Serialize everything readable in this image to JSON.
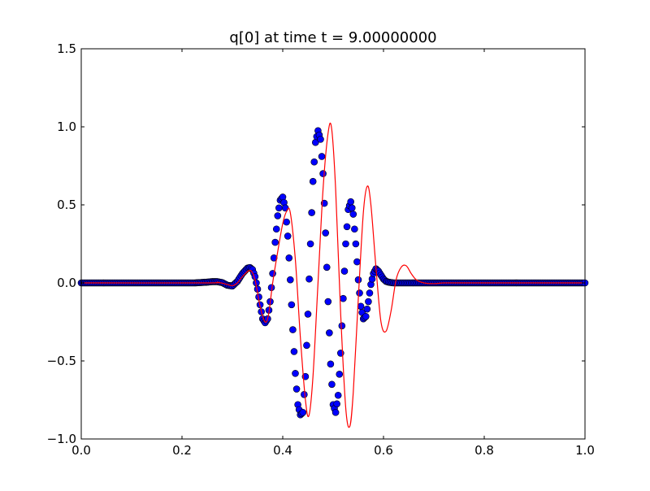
{
  "title": "q[0] at time t =     9.00000000",
  "colors": {
    "dots_fill": "#0000ff",
    "dots_edge": "#000000",
    "line": "#ff0000",
    "axes": "#000000",
    "background": "#ffffff"
  },
  "chart_data": {
    "type": "line",
    "title": "q[0] at time t =     9.00000000",
    "xlabel": "",
    "ylabel": "",
    "xlim": [
      0.0,
      1.0
    ],
    "ylim": [
      -1.0,
      1.5
    ],
    "grid": false,
    "legend": "none",
    "x_ticks": [
      "0.0",
      "0.2",
      "0.4",
      "0.6",
      "0.8",
      "1.0"
    ],
    "y_ticks": [
      "−1.0",
      "−0.5",
      "0.0",
      "0.5",
      "1.0",
      "1.5"
    ],
    "series": [
      {
        "kind": "scatter",
        "x": [
          0.0,
          0.025,
          0.05,
          0.075,
          0.1,
          0.125,
          0.15,
          0.175,
          0.2,
          0.225,
          0.25,
          0.26,
          0.27,
          0.28,
          0.29,
          0.3,
          0.31,
          0.32,
          0.33,
          0.335,
          0.34,
          0.345,
          0.35,
          0.355,
          0.36,
          0.365,
          0.37,
          0.375,
          0.38,
          0.385,
          0.39,
          0.395,
          0.4,
          0.405,
          0.41,
          0.415,
          0.42,
          0.425,
          0.43,
          0.435,
          0.44,
          0.445,
          0.45,
          0.455,
          0.46,
          0.465,
          0.47,
          0.475,
          0.48,
          0.485,
          0.49,
          0.495,
          0.5,
          0.505,
          0.51,
          0.515,
          0.52,
          0.525,
          0.53,
          0.535,
          0.54,
          0.545,
          0.55,
          0.555,
          0.56,
          0.565,
          0.57,
          0.575,
          0.58,
          0.585,
          0.59,
          0.595,
          0.6,
          0.605,
          0.61,
          0.615,
          0.62,
          0.625,
          0.63,
          0.635,
          0.64,
          0.645,
          0.65,
          0.66,
          0.67,
          0.68,
          0.69,
          0.7,
          0.71,
          0.72,
          0.73,
          0.75,
          0.775,
          0.8,
          0.825,
          0.85,
          0.875,
          0.9,
          0.925,
          0.95,
          0.975,
          1.0
        ],
        "y": [
          0.0,
          0.0,
          0.0,
          0.0,
          0.0,
          0.0,
          0.0,
          0.0,
          0.0,
          0.0,
          0.005,
          0.008,
          0.008,
          0.002,
          -0.015,
          -0.02,
          0.01,
          0.06,
          0.095,
          0.098,
          0.085,
          0.04,
          -0.04,
          -0.14,
          -0.23,
          -0.255,
          -0.23,
          -0.12,
          0.06,
          0.26,
          0.43,
          0.53,
          0.55,
          0.48,
          0.3,
          0.02,
          -0.3,
          -0.58,
          -0.78,
          -0.845,
          -0.83,
          -0.6,
          -0.2,
          0.25,
          0.65,
          0.9,
          0.975,
          0.92,
          0.7,
          0.32,
          -0.12,
          -0.52,
          -0.78,
          -0.83,
          -0.72,
          -0.45,
          -0.1,
          0.25,
          0.47,
          0.52,
          0.44,
          0.25,
          0.02,
          -0.15,
          -0.23,
          -0.215,
          -0.12,
          -0.01,
          0.06,
          0.09,
          0.075,
          0.05,
          0.025,
          0.01,
          0.005,
          0.002,
          0.0,
          0.0,
          0.0,
          0.0,
          0.0,
          0.0,
          0.0,
          0.0,
          0.0,
          0.0,
          0.0,
          0.0,
          0.0,
          0.0,
          0.0,
          0.0,
          0.0,
          0.0,
          0.0,
          0.0,
          0.0,
          0.0,
          0.0,
          0.0,
          0.0,
          0.0
        ]
      },
      {
        "kind": "line",
        "x": [
          0.0,
          0.25,
          0.27,
          0.29,
          0.3,
          0.31,
          0.32,
          0.335,
          0.345,
          0.355,
          0.365,
          0.372,
          0.38,
          0.39,
          0.4,
          0.408,
          0.415,
          0.425,
          0.435,
          0.445,
          0.452,
          0.46,
          0.47,
          0.48,
          0.49,
          0.497,
          0.505,
          0.515,
          0.525,
          0.533,
          0.54,
          0.55,
          0.56,
          0.568,
          0.575,
          0.585,
          0.595,
          0.605,
          0.615,
          0.625,
          0.635,
          0.645,
          0.655,
          0.665,
          0.68,
          0.7,
          0.72,
          0.75,
          1.0
        ],
        "y": [
          0.0,
          0.0,
          0.004,
          -0.01,
          -0.018,
          0.0,
          0.04,
          0.08,
          0.02,
          -0.15,
          -0.25,
          -0.2,
          0.0,
          0.2,
          0.38,
          0.46,
          0.45,
          0.15,
          -0.35,
          -0.75,
          -0.85,
          -0.6,
          0.0,
          0.6,
          0.96,
          0.99,
          0.6,
          -0.2,
          -0.8,
          -0.92,
          -0.7,
          -0.1,
          0.45,
          0.62,
          0.5,
          0.1,
          -0.25,
          -0.31,
          -0.18,
          0.02,
          0.1,
          0.11,
          0.06,
          0.02,
          0.0,
          -0.005,
          0.0,
          0.0,
          0.0
        ]
      }
    ]
  }
}
